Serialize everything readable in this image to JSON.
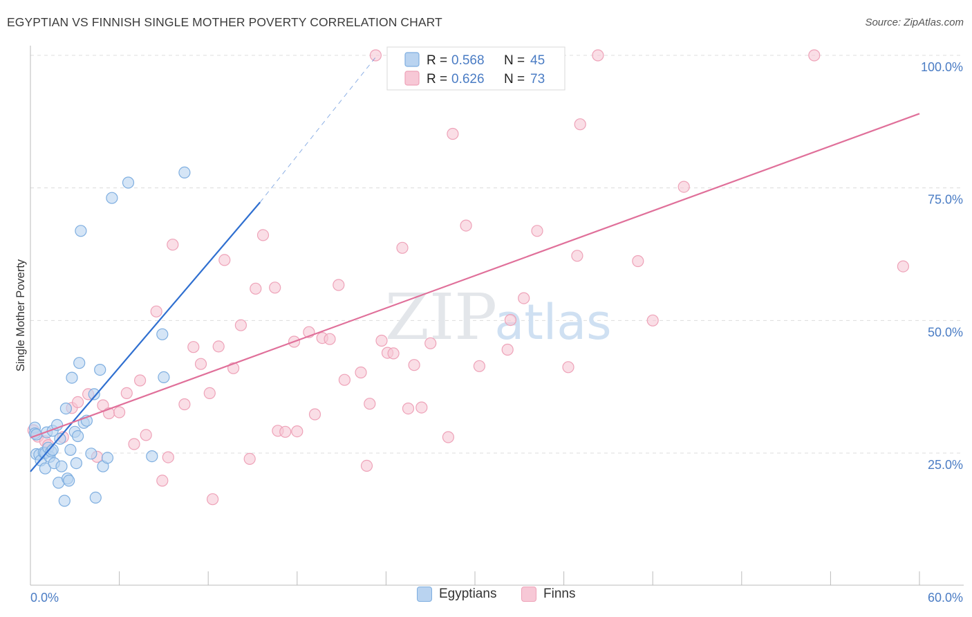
{
  "title": "EGYPTIAN VS FINNISH SINGLE MOTHER POVERTY CORRELATION CHART",
  "source": "Source: ZipAtlas.com",
  "watermark": {
    "zip": "ZIP",
    "atlas": "atlas"
  },
  "colors": {
    "blue_fill": "#b9d3f0",
    "blue_stroke": "#7eaee0",
    "blue_line": "#2f6fd0",
    "pink_fill": "#f7c8d6",
    "pink_stroke": "#eea2b8",
    "pink_line": "#e0709a",
    "axis_label": "#4a7cc4",
    "grid": "#dcdcdc"
  },
  "legend": {
    "r_label": "R =",
    "n_label": "N =",
    "rows": [
      {
        "series": "Egyptians",
        "r": "0.568",
        "n": "45"
      },
      {
        "series": "Finns",
        "r": "0.626",
        "n": "73"
      }
    ]
  },
  "bottom_legend": [
    "Egyptians",
    "Finns"
  ],
  "chart_data": {
    "type": "scatter",
    "xlabel": "",
    "ylabel": "Single Mother Poverty",
    "xlim": [
      0,
      60
    ],
    "ylim": [
      5,
      100
    ],
    "x_tick_labels": [
      "0.0%",
      "60.0%"
    ],
    "y_tick_labels": [
      {
        "value": 25,
        "label": "25.0%"
      },
      {
        "value": 50,
        "label": "50.0%"
      },
      {
        "value": 75,
        "label": "75.0%"
      },
      {
        "value": 100,
        "label": "100.0%"
      }
    ],
    "grid": true,
    "series": [
      {
        "name": "Egyptians",
        "points": [
          [
            0.3,
            29.8
          ],
          [
            0.3,
            28.7
          ],
          [
            0.4,
            28.5
          ],
          [
            0.4,
            24.8
          ],
          [
            0.6,
            24.7
          ],
          [
            0.7,
            23.6
          ],
          [
            0.9,
            25.1
          ],
          [
            1.0,
            25.0
          ],
          [
            1.0,
            22.1
          ],
          [
            1.1,
            28.9
          ],
          [
            1.2,
            26.0
          ],
          [
            1.3,
            24.3
          ],
          [
            1.4,
            25.3
          ],
          [
            1.5,
            29.2
          ],
          [
            1.6,
            23.1
          ],
          [
            1.8,
            30.3
          ],
          [
            1.9,
            19.4
          ],
          [
            2.0,
            27.7
          ],
          [
            2.1,
            22.5
          ],
          [
            2.3,
            16.0
          ],
          [
            2.4,
            33.4
          ],
          [
            2.5,
            20.2
          ],
          [
            2.6,
            19.8
          ],
          [
            2.7,
            25.6
          ],
          [
            2.8,
            39.2
          ],
          [
            3.0,
            29.0
          ],
          [
            3.1,
            23.1
          ],
          [
            3.2,
            28.2
          ],
          [
            3.3,
            42.0
          ],
          [
            3.4,
            66.9
          ],
          [
            3.6,
            30.7
          ],
          [
            3.8,
            31.1
          ],
          [
            4.1,
            24.9
          ],
          [
            4.3,
            36.1
          ],
          [
            4.4,
            16.6
          ],
          [
            4.7,
            40.7
          ],
          [
            4.9,
            22.5
          ],
          [
            5.2,
            24.1
          ],
          [
            5.5,
            73.1
          ],
          [
            6.6,
            76.0
          ],
          [
            8.2,
            24.4
          ],
          [
            8.9,
            47.4
          ],
          [
            9.0,
            39.3
          ],
          [
            10.4,
            77.9
          ],
          [
            1.5,
            25.6
          ]
        ],
        "trend": {
          "x": [
            0,
            15.5
          ],
          "y": [
            21.5,
            72.3
          ],
          "dashed_to": [
            23.4,
            100
          ]
        }
      },
      {
        "name": "Finns",
        "points": [
          [
            0.2,
            29.3
          ],
          [
            0.5,
            28.1
          ],
          [
            1.0,
            27.2
          ],
          [
            1.2,
            26.5
          ],
          [
            2.2,
            28.0
          ],
          [
            2.8,
            33.5
          ],
          [
            3.2,
            34.6
          ],
          [
            3.9,
            36.1
          ],
          [
            4.5,
            24.3
          ],
          [
            4.9,
            34.0
          ],
          [
            5.3,
            32.5
          ],
          [
            6.0,
            32.7
          ],
          [
            6.5,
            36.3
          ],
          [
            7.0,
            26.7
          ],
          [
            7.4,
            38.7
          ],
          [
            7.8,
            28.4
          ],
          [
            8.5,
            51.7
          ],
          [
            8.9,
            19.8
          ],
          [
            9.3,
            24.2
          ],
          [
            9.6,
            64.3
          ],
          [
            10.4,
            34.2
          ],
          [
            11.0,
            45.0
          ],
          [
            11.5,
            41.8
          ],
          [
            12.1,
            36.3
          ],
          [
            12.3,
            16.3
          ],
          [
            12.7,
            45.1
          ],
          [
            13.1,
            61.4
          ],
          [
            13.7,
            41.0
          ],
          [
            14.2,
            49.1
          ],
          [
            14.8,
            23.9
          ],
          [
            15.2,
            56.0
          ],
          [
            15.7,
            66.1
          ],
          [
            16.5,
            56.2
          ],
          [
            16.7,
            29.2
          ],
          [
            17.2,
            29.0
          ],
          [
            17.8,
            46.0
          ],
          [
            18.0,
            29.1
          ],
          [
            18.8,
            47.8
          ],
          [
            19.2,
            32.3
          ],
          [
            19.7,
            46.7
          ],
          [
            20.2,
            46.5
          ],
          [
            20.8,
            56.7
          ],
          [
            21.2,
            38.8
          ],
          [
            22.3,
            40.2
          ],
          [
            22.7,
            22.6
          ],
          [
            22.9,
            34.3
          ],
          [
            23.3,
            100.0
          ],
          [
            23.7,
            46.2
          ],
          [
            24.1,
            43.9
          ],
          [
            24.5,
            43.8
          ],
          [
            25.1,
            63.7
          ],
          [
            25.5,
            33.4
          ],
          [
            25.9,
            41.6
          ],
          [
            26.4,
            33.6
          ],
          [
            27.0,
            45.7
          ],
          [
            28.5,
            85.2
          ],
          [
            29.4,
            67.9
          ],
          [
            30.3,
            41.4
          ],
          [
            32.2,
            44.5
          ],
          [
            32.4,
            50.1
          ],
          [
            34.2,
            66.9
          ],
          [
            35.1,
            100.0
          ],
          [
            36.3,
            41.2
          ],
          [
            36.9,
            62.2
          ],
          [
            37.1,
            87.0
          ],
          [
            38.3,
            100.0
          ],
          [
            41.0,
            61.2
          ],
          [
            42.0,
            50.0
          ],
          [
            44.1,
            75.2
          ],
          [
            52.9,
            100.0
          ],
          [
            58.9,
            60.2
          ],
          [
            28.2,
            28.0
          ],
          [
            33.3,
            54.2
          ]
        ],
        "trend": {
          "x": [
            0,
            60
          ],
          "y": [
            27.9,
            89.0
          ]
        }
      }
    ]
  }
}
